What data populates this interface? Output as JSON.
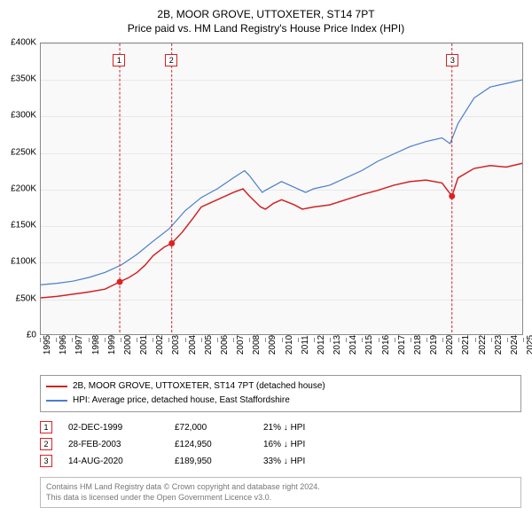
{
  "title": "2B, MOOR GROVE, UTTOXETER, ST14 7PT",
  "subtitle": "Price paid vs. HM Land Registry's House Price Index (HPI)",
  "chart": {
    "type": "line",
    "background_color": "#f9f9fa",
    "grid_color": "#e8e8e8",
    "axis_color": "#888888",
    "ylim": [
      0,
      400000
    ],
    "ytick_step": 50000,
    "ytick_labels": [
      "£0",
      "£50K",
      "£100K",
      "£150K",
      "£200K",
      "£250K",
      "£300K",
      "£350K",
      "£400K"
    ],
    "xlim": [
      1995,
      2025
    ],
    "xticks": [
      1995,
      1996,
      1997,
      1998,
      1999,
      2000,
      2001,
      2002,
      2003,
      2004,
      2005,
      2006,
      2007,
      2008,
      2009,
      2010,
      2011,
      2012,
      2013,
      2014,
      2015,
      2016,
      2017,
      2018,
      2019,
      2020,
      2021,
      2022,
      2023,
      2024,
      2025
    ],
    "series": [
      {
        "name": "property",
        "label": "2B, MOOR GROVE, UTTOXETER, ST14 7PT (detached house)",
        "color": "#d22222",
        "line_width": 1.5,
        "points": [
          [
            1995,
            50000
          ],
          [
            1996,
            52000
          ],
          [
            1997,
            55000
          ],
          [
            1998,
            58000
          ],
          [
            1999,
            62000
          ],
          [
            1999.92,
            72000
          ],
          [
            2000.5,
            78000
          ],
          [
            2001,
            85000
          ],
          [
            2001.5,
            95000
          ],
          [
            2002,
            108000
          ],
          [
            2002.7,
            120000
          ],
          [
            2003.16,
            124950
          ],
          [
            2003.8,
            140000
          ],
          [
            2004.5,
            160000
          ],
          [
            2005,
            175000
          ],
          [
            2006,
            185000
          ],
          [
            2007,
            195000
          ],
          [
            2007.6,
            200000
          ],
          [
            2008,
            190000
          ],
          [
            2008.7,
            175000
          ],
          [
            2009,
            172000
          ],
          [
            2009.5,
            180000
          ],
          [
            2010,
            185000
          ],
          [
            2010.8,
            178000
          ],
          [
            2011.3,
            172000
          ],
          [
            2012,
            175000
          ],
          [
            2013,
            178000
          ],
          [
            2014,
            185000
          ],
          [
            2015,
            192000
          ],
          [
            2016,
            198000
          ],
          [
            2017,
            205000
          ],
          [
            2018,
            210000
          ],
          [
            2019,
            212000
          ],
          [
            2020,
            208000
          ],
          [
            2020.62,
            189950
          ],
          [
            2021,
            215000
          ],
          [
            2022,
            228000
          ],
          [
            2023,
            232000
          ],
          [
            2024,
            230000
          ],
          [
            2025,
            235000
          ]
        ]
      },
      {
        "name": "hpi",
        "label": "HPI: Average price, detached house, East Staffordshire",
        "color": "#4a7ec8",
        "line_width": 1.2,
        "points": [
          [
            1995,
            68000
          ],
          [
            1996,
            70000
          ],
          [
            1997,
            73000
          ],
          [
            1998,
            78000
          ],
          [
            1999,
            85000
          ],
          [
            2000,
            95000
          ],
          [
            2001,
            110000
          ],
          [
            2002,
            128000
          ],
          [
            2003,
            145000
          ],
          [
            2004,
            170000
          ],
          [
            2005,
            188000
          ],
          [
            2006,
            200000
          ],
          [
            2007,
            215000
          ],
          [
            2007.7,
            225000
          ],
          [
            2008,
            218000
          ],
          [
            2008.8,
            195000
          ],
          [
            2009,
            198000
          ],
          [
            2010,
            210000
          ],
          [
            2010.8,
            202000
          ],
          [
            2011.5,
            195000
          ],
          [
            2012,
            200000
          ],
          [
            2013,
            205000
          ],
          [
            2014,
            215000
          ],
          [
            2015,
            225000
          ],
          [
            2016,
            238000
          ],
          [
            2017,
            248000
          ],
          [
            2018,
            258000
          ],
          [
            2019,
            265000
          ],
          [
            2020,
            270000
          ],
          [
            2020.5,
            262000
          ],
          [
            2021,
            290000
          ],
          [
            2022,
            325000
          ],
          [
            2023,
            340000
          ],
          [
            2024,
            345000
          ],
          [
            2025,
            350000
          ]
        ]
      }
    ],
    "markers": [
      {
        "num": "1",
        "x": 1999.92,
        "color": "#d22222"
      },
      {
        "num": "2",
        "x": 2003.16,
        "color": "#d22222"
      },
      {
        "num": "3",
        "x": 2020.62,
        "color": "#d22222"
      }
    ],
    "sale_points": [
      {
        "x": 1999.92,
        "y": 72000
      },
      {
        "x": 2003.16,
        "y": 124950
      },
      {
        "x": 2020.62,
        "y": 189950
      }
    ]
  },
  "legend": [
    {
      "color": "#d22222",
      "label": "2B, MOOR GROVE, UTTOXETER, ST14 7PT (detached house)"
    },
    {
      "color": "#4a7ec8",
      "label": "HPI: Average price, detached house, East Staffordshire"
    }
  ],
  "transactions": [
    {
      "num": "1",
      "date": "02-DEC-1999",
      "price": "£72,000",
      "diff": "21% ↓ HPI"
    },
    {
      "num": "2",
      "date": "28-FEB-2003",
      "price": "£124,950",
      "diff": "16% ↓ HPI"
    },
    {
      "num": "3",
      "date": "14-AUG-2020",
      "price": "£189,950",
      "diff": "33% ↓ HPI"
    }
  ],
  "footer_line1": "Contains HM Land Registry data © Crown copyright and database right 2024.",
  "footer_line2": "This data is licensed under the Open Government Licence v3.0."
}
